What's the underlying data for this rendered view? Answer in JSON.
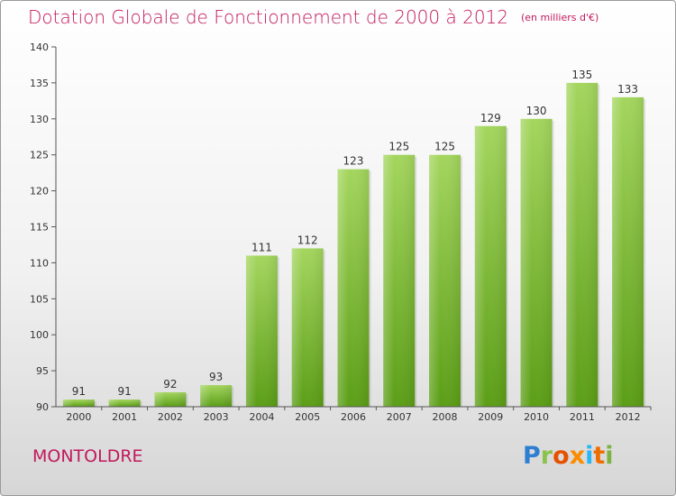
{
  "header": {
    "title": "Dotation Globale de Fonctionnement de 2000 à 2012",
    "unit": "(en milliers d'€)"
  },
  "footer": {
    "commune": "MONTOLDRE",
    "brand_letters": [
      "P",
      "r",
      "o",
      "x",
      "i",
      "t",
      "i"
    ]
  },
  "colors": {
    "accent": "#c2185b",
    "bar_light": "#a4d65e",
    "bar_dark": "#5b9e16"
  },
  "chart_data": {
    "type": "bar",
    "title": "Dotation Globale de Fonctionnement de 2000 à 2012",
    "subtitle": "(en milliers d'€)",
    "xlabel": "",
    "ylabel": "",
    "categories": [
      "2000",
      "2001",
      "2002",
      "2003",
      "2004",
      "2005",
      "2006",
      "2007",
      "2008",
      "2009",
      "2010",
      "2011",
      "2012"
    ],
    "values": [
      91,
      91,
      92,
      93,
      111,
      112,
      123,
      125,
      125,
      129,
      130,
      135,
      133
    ],
    "ylim": [
      90,
      140
    ],
    "yticks": [
      "90",
      "95",
      "100",
      "105",
      "110",
      "115",
      "120",
      "125",
      "130",
      "135",
      "140"
    ],
    "grid": false,
    "legend": "none"
  }
}
